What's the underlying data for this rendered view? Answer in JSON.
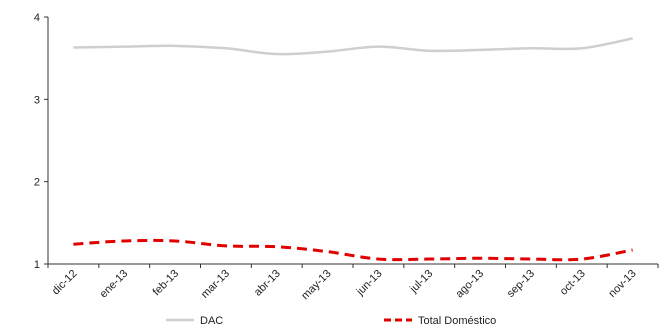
{
  "chart_data": {
    "type": "line",
    "categories": [
      "dic-12",
      "ene-13",
      "feb-13",
      "mar-13",
      "abr-13",
      "may-13",
      "jun-13",
      "jul-13",
      "ago-13",
      "sep-13",
      "oct-13",
      "nov-13"
    ],
    "ylim": [
      1,
      4
    ],
    "yticks": [
      "1",
      "2",
      "3",
      "4"
    ],
    "grid": false,
    "legend_position": "bottom",
    "series": [
      {
        "name": "DAC",
        "color": "#cfcfcf",
        "style": "solid",
        "values": [
          3.63,
          3.64,
          3.65,
          3.62,
          3.55,
          3.58,
          3.64,
          3.59,
          3.6,
          3.62,
          3.62,
          3.74
        ]
      },
      {
        "name": "Total Doméstico",
        "color": "#e00000",
        "style": "dashed",
        "values": [
          1.24,
          1.28,
          1.28,
          1.22,
          1.21,
          1.15,
          1.06,
          1.06,
          1.07,
          1.06,
          1.06,
          1.17
        ]
      }
    ]
  }
}
